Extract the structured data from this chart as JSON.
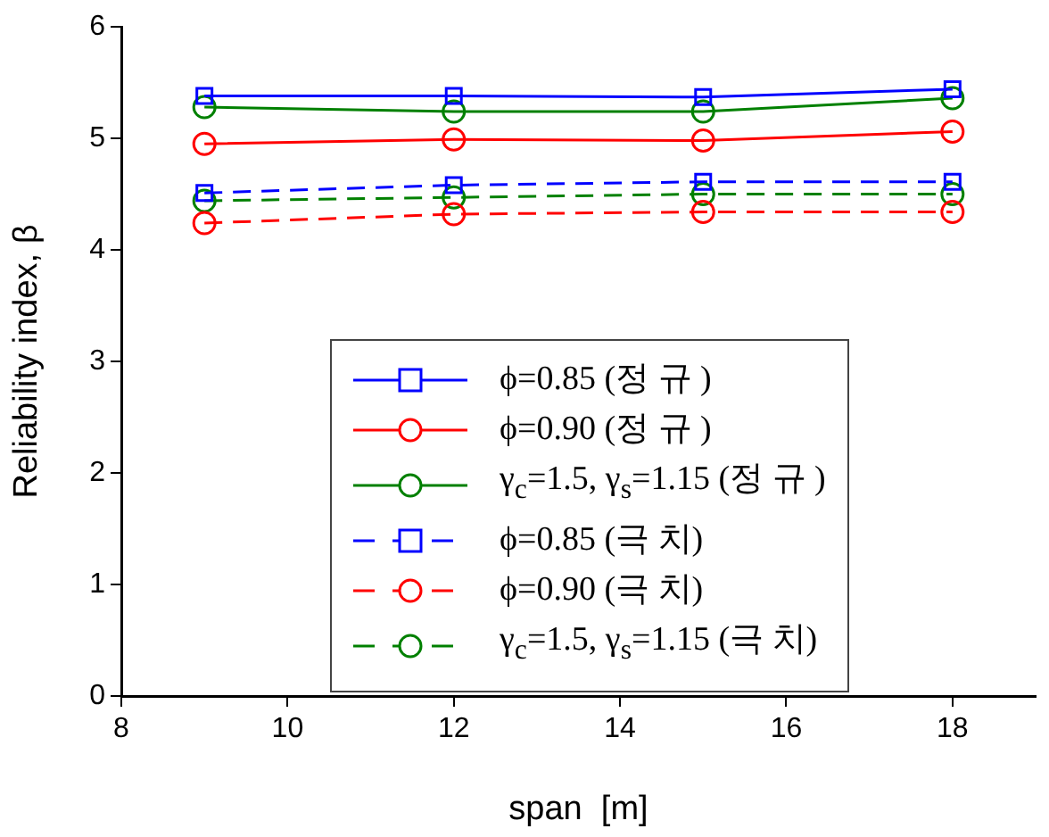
{
  "chart_data": {
    "type": "line",
    "xlabel": "span  [m]",
    "ylabel": "Reliability index, β",
    "x": [
      9,
      12,
      15,
      18
    ],
    "xlim": [
      8,
      19
    ],
    "xticks": [
      8,
      10,
      12,
      14,
      16,
      18
    ],
    "ylim": [
      0,
      6
    ],
    "yticks": [
      0,
      1,
      2,
      3,
      4,
      5,
      6
    ],
    "grid": false,
    "legend": "center",
    "series": [
      {
        "name": "ϕ=0.85 (정 규 )",
        "color": "#0000ff",
        "marker": "square",
        "line_style": "solid",
        "values": [
          5.38,
          5.38,
          5.37,
          5.44
        ]
      },
      {
        "name": "ϕ=0.90 (정 규 )",
        "color": "#ff0000",
        "marker": "circle",
        "line_style": "solid",
        "values": [
          4.95,
          4.99,
          4.98,
          5.06
        ]
      },
      {
        "name": "γ$_{c}$=1.5, γ$_{s}$=1.15 (정 규 )",
        "color": "#008000",
        "marker": "circle",
        "line_style": "solid",
        "values": [
          5.28,
          5.24,
          5.24,
          5.36
        ]
      },
      {
        "name": "ϕ=0.85 (극 치)",
        "color": "#0000ff",
        "marker": "square",
        "line_style": "dashed",
        "values": [
          4.51,
          4.58,
          4.61,
          4.61
        ]
      },
      {
        "name": "ϕ=0.90 (극 치)",
        "color": "#ff0000",
        "marker": "circle",
        "line_style": "dashed",
        "values": [
          4.24,
          4.32,
          4.34,
          4.34
        ]
      },
      {
        "name": "γ$_{c}$=1.5, γ$_{s}$=1.15 (극 치)",
        "color": "#008000",
        "marker": "circle",
        "line_style": "dashed",
        "values": [
          4.44,
          4.47,
          4.5,
          4.5
        ]
      }
    ]
  }
}
